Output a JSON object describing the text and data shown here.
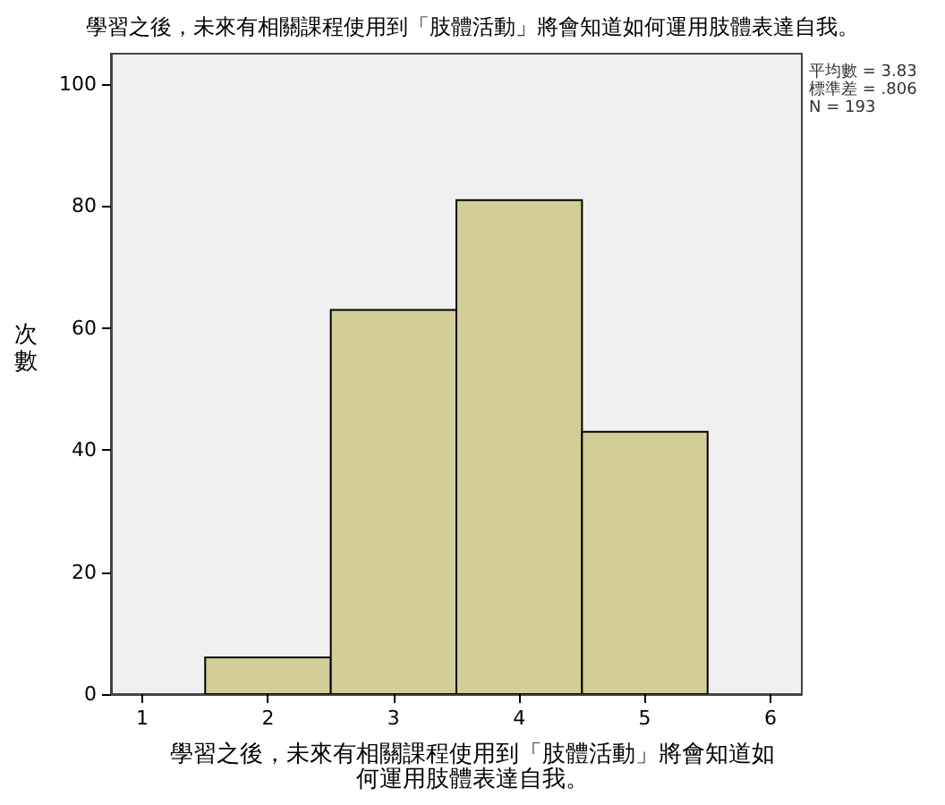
{
  "chart_data": {
    "type": "histogram",
    "title": "學習之後，未來有相關課程使用到「肢體活動」將會知道如何運用肢體表達自我。",
    "xlabel": "學習之後，未來有相關課程使用到「肢體活動」將會知道如何運用肢體表達自我。",
    "ylabel": "次數",
    "bins": [
      1.5,
      2.5,
      3.5,
      4.5,
      5.5
    ],
    "values": [
      6,
      63,
      81,
      43
    ],
    "color": "#d3ce97",
    "xlim": [
      0.75,
      6.25
    ],
    "xticks": [
      1,
      2,
      3,
      4,
      5,
      6
    ],
    "ylim": [
      0,
      105
    ],
    "yticks": [
      0,
      20,
      40,
      60,
      80,
      100
    ],
    "grid": false,
    "annotations": [
      "平均數 = 3.83",
      "標準差 = .806",
      "N = 193"
    ]
  }
}
